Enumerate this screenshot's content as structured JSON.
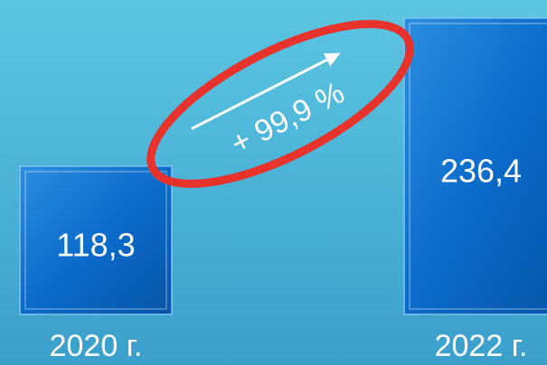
{
  "chart_data": {
    "type": "bar",
    "categories": [
      "2020 г.",
      "2022 г."
    ],
    "values": [
      118.3,
      236.4
    ],
    "value_labels": [
      "118,3",
      "236,4"
    ],
    "color": "#0a6fc9",
    "annotation": "+ 99,9 %"
  }
}
